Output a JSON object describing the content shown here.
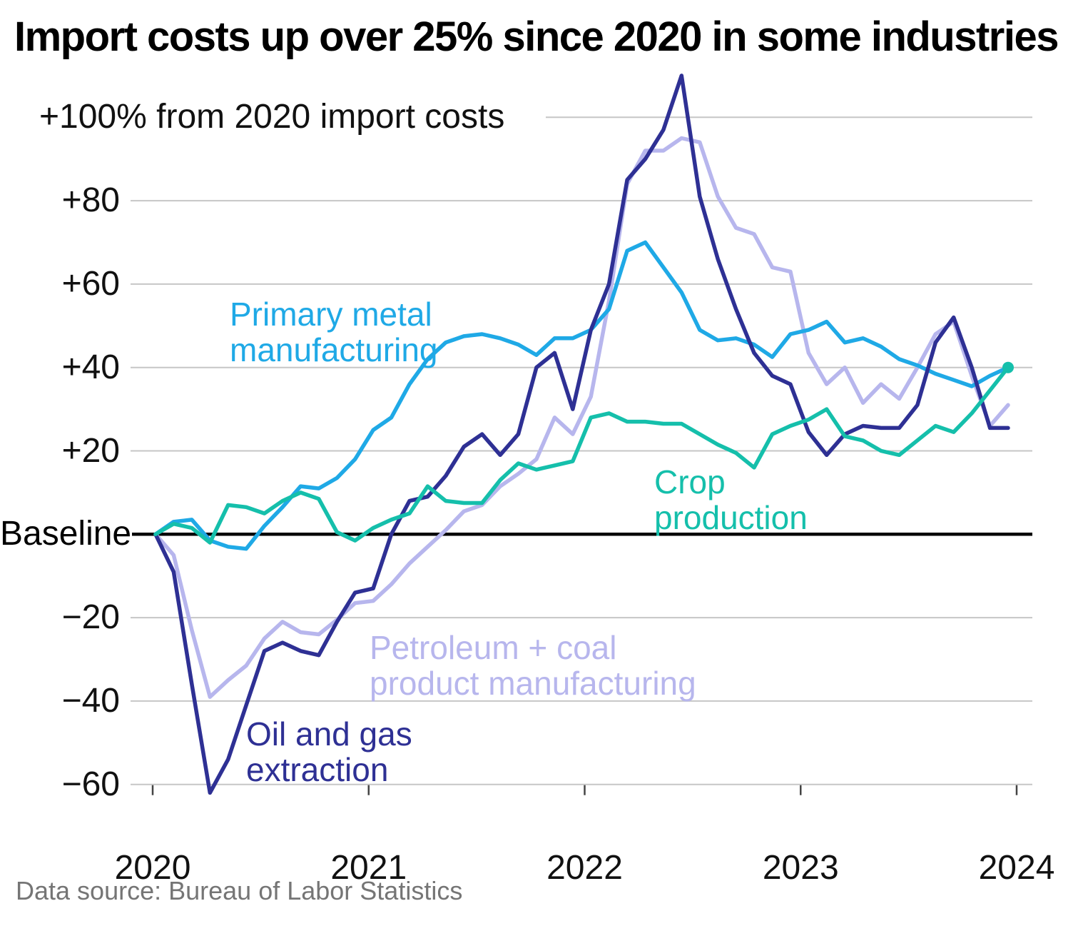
{
  "header": {
    "title": "Import costs up over 25% since 2020 in some industries"
  },
  "footer": {
    "source": "Data source: Bureau of Labor Statistics"
  },
  "chart_data": {
    "type": "line",
    "title": "Import costs up over 25% since 2020 in some industries",
    "frequency": "monthly",
    "start": "2020-01",
    "end": "2023-12",
    "grid": true,
    "legend_position": "inline-labels",
    "y_axis": {
      "unit_label": "+100% from 2020 import costs",
      "baseline_label": "Baseline",
      "baseline_value": 0,
      "gridline_values": [
        100,
        80,
        60,
        40,
        20,
        0,
        -20,
        -40,
        -60
      ],
      "tick_labels": [
        "+80",
        "+60",
        "+40",
        "+20",
        "−20",
        "−40",
        "−60"
      ],
      "tick_values": [
        80,
        60,
        40,
        20,
        -20,
        -40,
        -60
      ],
      "ylim": [
        -65,
        113
      ]
    },
    "x_axis": {
      "tick_labels": [
        "2020",
        "2021",
        "2022",
        "2023",
        "2024"
      ]
    },
    "series": [
      {
        "name": "Petroleum + coal product manufacturing",
        "label_lines": "Petroleum + coal\nproduct manufacturing",
        "color": "#b7b6ed",
        "values": [
          0,
          -5,
          -23,
          -39,
          -35,
          -31.5,
          -25,
          -21,
          -23.5,
          -24,
          -20.5,
          -16.5,
          -16,
          -12,
          -7,
          -3,
          1,
          5.5,
          7,
          11.5,
          14.5,
          18,
          28,
          24,
          33,
          56,
          84,
          92,
          92,
          95,
          94,
          81,
          73.5,
          72,
          64,
          63,
          43.5,
          36,
          40,
          31.5,
          36,
          32.5,
          40,
          48,
          51,
          38,
          26,
          31
        ]
      },
      {
        "name": "Primary metal manufacturing",
        "label_lines": "Primary metal\nmanufacturing",
        "color": "#1fa9e6",
        "values": [
          0,
          3,
          3.5,
          -1.5,
          -3,
          -3.5,
          2,
          6.5,
          11.5,
          11,
          13.5,
          18,
          25,
          28,
          36,
          42,
          46,
          47.5,
          48,
          47,
          45.5,
          43,
          47,
          47,
          49,
          54,
          68,
          70,
          64,
          58,
          49,
          46.5,
          47,
          45.5,
          42.5,
          48,
          49,
          51,
          46,
          47,
          45,
          42,
          40.5,
          38.5,
          37,
          35.5,
          38,
          40
        ]
      },
      {
        "name": "Oil and gas extraction",
        "label_lines": "Oil and gas\nextraction",
        "color": "#2e3094",
        "values": [
          0,
          -9,
          -36,
          -62,
          -54,
          -41,
          -28,
          -26,
          -28,
          -29,
          -21,
          -14,
          -13,
          0,
          8,
          9,
          14,
          21,
          24,
          19,
          24,
          40,
          43.5,
          30,
          49,
          60,
          85,
          90,
          97,
          110,
          81,
          66,
          54,
          43.5,
          38,
          36,
          24.5,
          19,
          24,
          26,
          25.5,
          25.5,
          31,
          46,
          52,
          40,
          25.5,
          25.5
        ]
      },
      {
        "name": "Crop production",
        "label_lines": "Crop\nproduction",
        "color": "#15bfab",
        "values": [
          0,
          2.5,
          1.5,
          -2,
          7,
          6.5,
          5,
          8,
          10,
          8.5,
          0.5,
          -1.5,
          1.5,
          3.5,
          5,
          11.5,
          8,
          7.5,
          7.5,
          13,
          17,
          15.5,
          16.5,
          17.5,
          28,
          29,
          27,
          27,
          26.5,
          26.5,
          24,
          21.5,
          19.5,
          16,
          24,
          26,
          27.5,
          30,
          23.5,
          22.5,
          20,
          19,
          22.5,
          26,
          24.5,
          29,
          34.5,
          40
        ],
        "end_dot": true
      }
    ],
    "colors": {
      "gridline": "#c6c6c6",
      "baseline": "#000000",
      "tick": "#444444",
      "title": "#000000",
      "axis_text": "#111111",
      "source_text": "#757575"
    }
  }
}
